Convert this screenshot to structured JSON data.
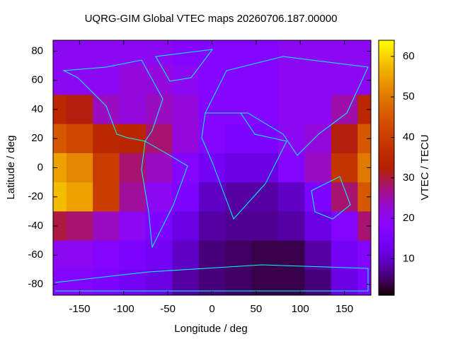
{
  "chart_data": {
    "type": "heatmap",
    "title": "UQRG-GIM Global VTEC maps 20260706.187.00000",
    "x_label": "Longitude / deg",
    "y_label": "Latitude / deg",
    "colorbar_label": "VTEC / TECU",
    "x": [
      -180,
      -150,
      -120,
      -90,
      -60,
      -30,
      0,
      30,
      60,
      90,
      120,
      150,
      180
    ],
    "y": [
      80,
      60,
      40,
      20,
      0,
      -20,
      -40,
      -60,
      -80
    ],
    "z": [
      [
        20,
        20,
        20,
        20,
        20,
        18,
        18,
        18,
        18,
        20,
        20,
        20,
        20
      ],
      [
        20,
        20,
        20,
        22,
        22,
        20,
        18,
        18,
        18,
        20,
        20,
        20,
        20
      ],
      [
        35,
        32,
        24,
        22,
        24,
        22,
        18,
        18,
        18,
        20,
        20,
        25,
        35
      ],
      [
        45,
        42,
        35,
        34,
        28,
        22,
        18,
        16,
        16,
        20,
        22,
        32,
        45
      ],
      [
        55,
        52,
        40,
        28,
        24,
        18,
        14,
        12,
        12,
        18,
        24,
        38,
        50
      ],
      [
        58,
        55,
        40,
        26,
        20,
        16,
        10,
        8,
        8,
        10,
        16,
        28,
        45
      ],
      [
        30,
        28,
        24,
        20,
        16,
        12,
        8,
        7,
        7,
        8,
        12,
        18,
        28
      ],
      [
        20,
        20,
        18,
        16,
        14,
        10,
        6,
        5,
        4,
        4,
        8,
        14,
        18
      ],
      [
        18,
        18,
        16,
        14,
        12,
        8,
        6,
        5,
        4,
        4,
        6,
        12,
        16
      ]
    ],
    "xlim": [
      -180,
      180
    ],
    "ylim": [
      -87.5,
      87.5
    ],
    "xticks": [
      -150,
      -100,
      -50,
      0,
      50,
      100,
      150
    ],
    "yticks": [
      -80,
      -60,
      -40,
      -20,
      0,
      20,
      40,
      60,
      80
    ],
    "clim": [
      1,
      64
    ],
    "cticks": [
      10,
      20,
      30,
      40,
      50,
      60
    ],
    "palette": "gnuplot",
    "coastline_color": "#00ffff"
  }
}
